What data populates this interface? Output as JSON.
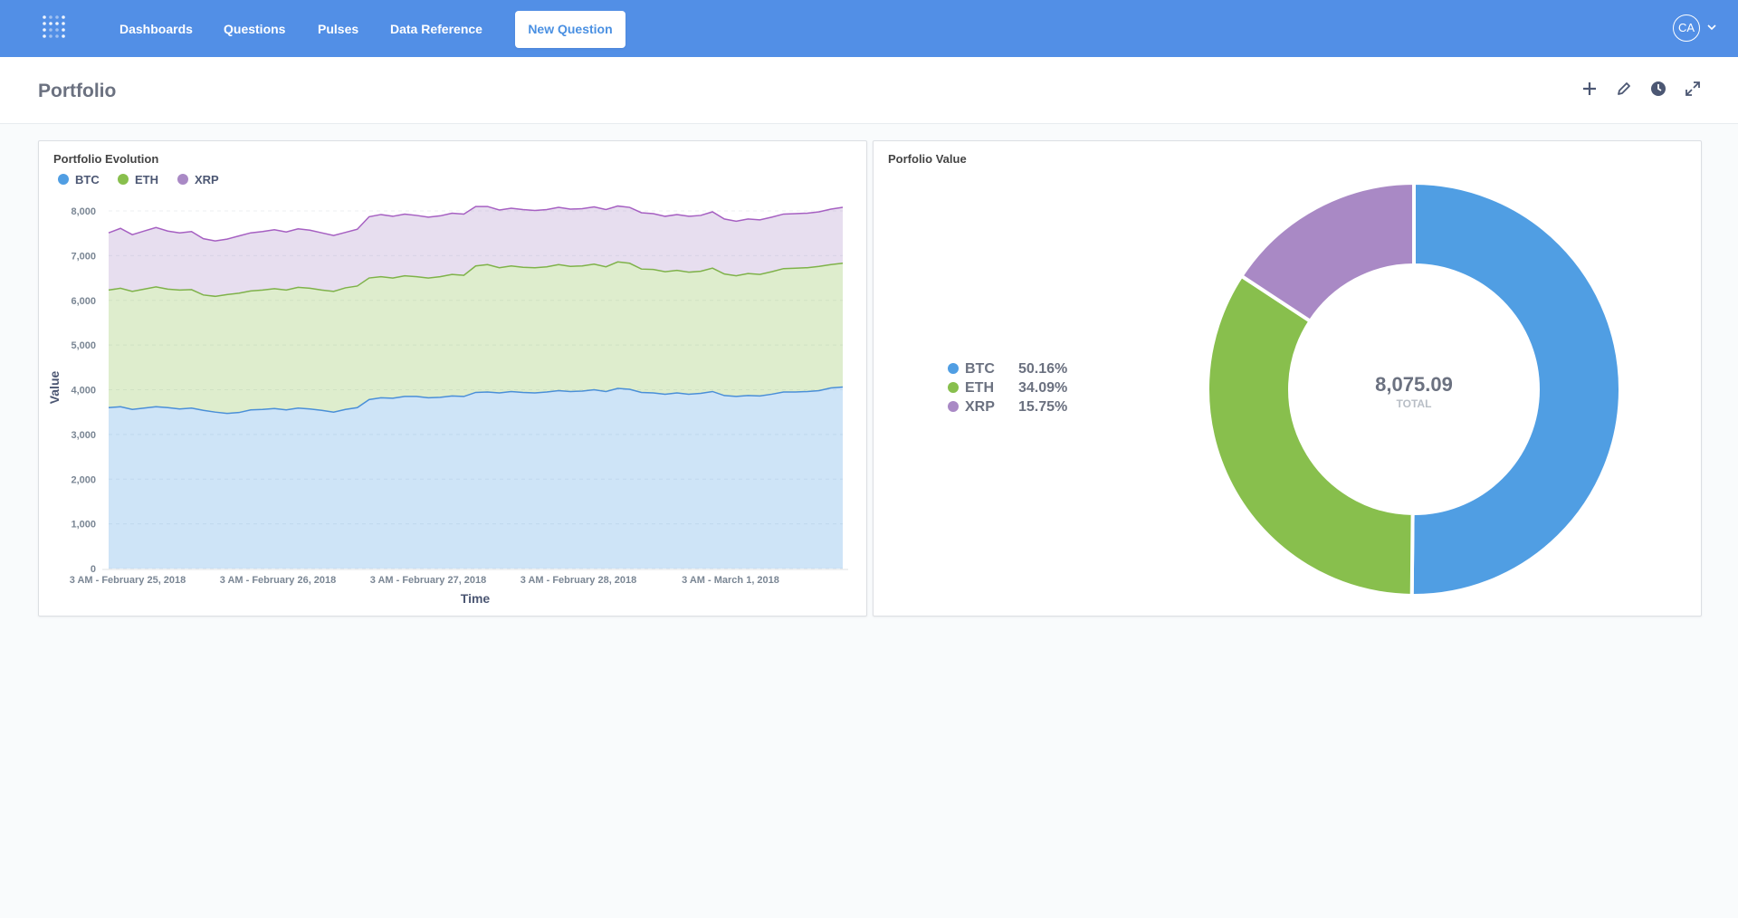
{
  "nav": {
    "items": [
      "Dashboards",
      "Questions",
      "Pulses",
      "Data Reference"
    ],
    "new_question": "New Question",
    "avatar": "CA"
  },
  "page": {
    "title": "Portfolio"
  },
  "colors": {
    "btc": "#509ee3",
    "eth": "#88bf4d",
    "xrp": "#a989c5",
    "nav": "#528fe6"
  },
  "area_card": {
    "title": "Portfolio Evolution",
    "legend": [
      "BTC",
      "ETH",
      "XRP"
    ]
  },
  "pie_card": {
    "title": "Porfolio Value",
    "total": "8,075.09",
    "total_label": "TOTAL",
    "legend": [
      {
        "name": "BTC",
        "pct": "50.16%"
      },
      {
        "name": "ETH",
        "pct": "34.09%"
      },
      {
        "name": "XRP",
        "pct": "15.75%"
      }
    ]
  },
  "chart_data": [
    {
      "type": "area",
      "title": "Portfolio Evolution",
      "xlabel": "Time",
      "ylabel": "Value",
      "stacked": true,
      "x_ticks": [
        "3 AM - February 25, 2018",
        "3 AM - February 26, 2018",
        "3 AM - February 27, 2018",
        "3 AM - February 28, 2018",
        "3 AM - March 1, 2018"
      ],
      "y_ticks": [
        "0",
        "1,000",
        "2,000",
        "3,000",
        "4,000",
        "5,000",
        "6,000",
        "7,000",
        "8,000"
      ],
      "ylim": [
        0,
        8000
      ],
      "series": [
        {
          "name": "BTC",
          "cumulative": [
            3600,
            3620,
            3560,
            3590,
            3620,
            3600,
            3570,
            3590,
            3540,
            3500,
            3470,
            3490,
            3550,
            3560,
            3580,
            3550,
            3590,
            3570,
            3540,
            3500,
            3560,
            3600,
            3780,
            3820,
            3810,
            3850,
            3850,
            3820,
            3830,
            3860,
            3850,
            3940,
            3950,
            3930,
            3960,
            3940,
            3930,
            3950,
            3980,
            3960,
            3970,
            4000,
            3960,
            4030,
            4010,
            3940,
            3930,
            3900,
            3930,
            3900,
            3920,
            3960,
            3870,
            3850,
            3870,
            3860,
            3900,
            3950,
            3950,
            3960,
            3980,
            4040,
            4060
          ]
        },
        {
          "name": "ETH",
          "cumulative": [
            6230,
            6270,
            6200,
            6250,
            6300,
            6250,
            6230,
            6240,
            6120,
            6090,
            6130,
            6160,
            6210,
            6230,
            6260,
            6230,
            6290,
            6270,
            6230,
            6200,
            6280,
            6320,
            6500,
            6530,
            6500,
            6550,
            6530,
            6500,
            6530,
            6580,
            6560,
            6770,
            6800,
            6730,
            6770,
            6740,
            6730,
            6750,
            6800,
            6760,
            6770,
            6810,
            6750,
            6860,
            6830,
            6700,
            6690,
            6640,
            6670,
            6630,
            6650,
            6720,
            6590,
            6550,
            6600,
            6580,
            6640,
            6710,
            6720,
            6730,
            6760,
            6800,
            6830
          ]
        },
        {
          "name": "XRP",
          "cumulative": [
            7510,
            7610,
            7470,
            7550,
            7630,
            7550,
            7510,
            7540,
            7380,
            7330,
            7370,
            7440,
            7510,
            7540,
            7580,
            7530,
            7600,
            7570,
            7510,
            7450,
            7520,
            7590,
            7870,
            7920,
            7880,
            7930,
            7900,
            7860,
            7890,
            7950,
            7930,
            8100,
            8100,
            8020,
            8060,
            8030,
            8010,
            8030,
            8080,
            8040,
            8050,
            8090,
            8030,
            8110,
            8080,
            7960,
            7940,
            7880,
            7920,
            7880,
            7900,
            7980,
            7820,
            7770,
            7820,
            7800,
            7860,
            7930,
            7940,
            7950,
            7980,
            8040,
            8080
          ]
        }
      ]
    },
    {
      "type": "pie",
      "title": "Porfolio Value",
      "total": 8075.09,
      "slices": [
        {
          "name": "BTC",
          "percent": 50.16
        },
        {
          "name": "ETH",
          "percent": 34.09
        },
        {
          "name": "XRP",
          "percent": 15.75
        }
      ]
    }
  ]
}
